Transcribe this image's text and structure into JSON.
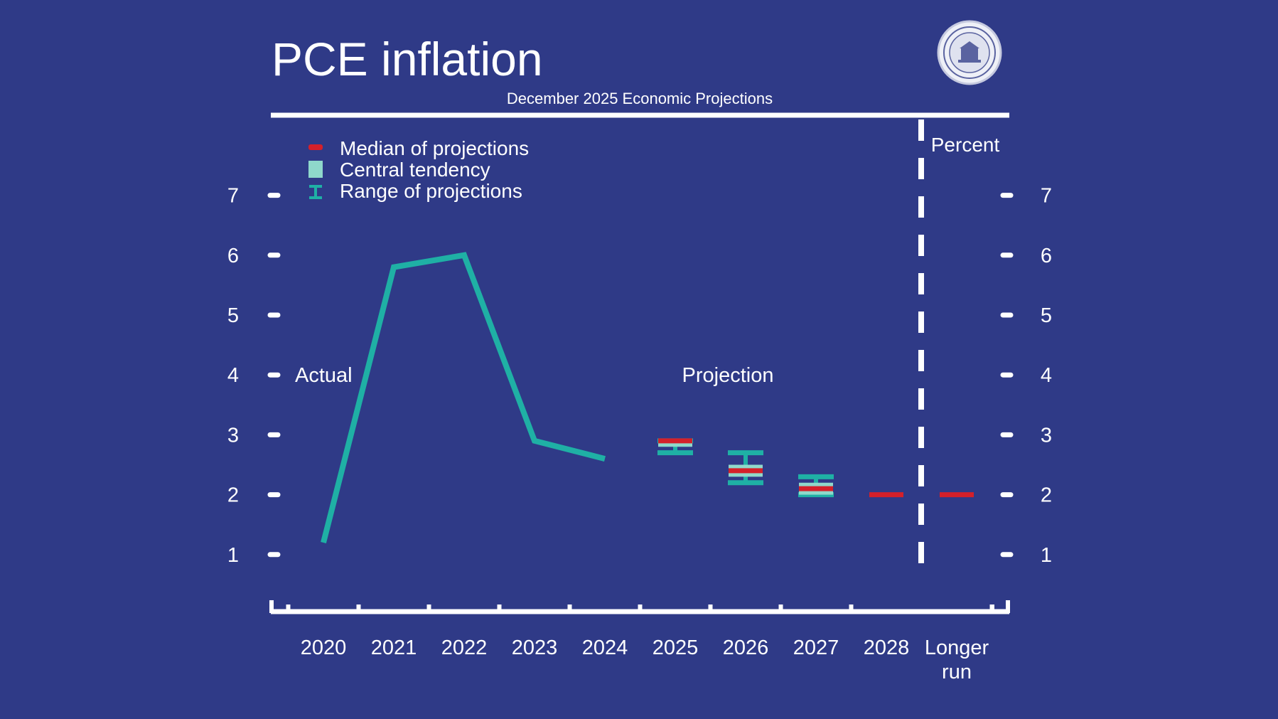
{
  "colors": {
    "background": "#2f3a87",
    "foreground": "#ffffff",
    "actual_line": "#1fb0a5",
    "central_tendency": "#8fd8cb",
    "range": "#1fb0a5",
    "median": "#d4202a"
  },
  "chart_data": {
    "type": "line",
    "title": "PCE inflation",
    "subtitle": "December 2025 Economic Projections",
    "unit_label": "Percent",
    "section_labels": {
      "actual": "Actual",
      "projection": "Projection"
    },
    "legend": [
      {
        "key": "median",
        "label": "Median of projections"
      },
      {
        "key": "central",
        "label": "Central tendency"
      },
      {
        "key": "range",
        "label": "Range of projections"
      }
    ],
    "categories": [
      "2020",
      "2021",
      "2022",
      "2023",
      "2024",
      "2025",
      "2026",
      "2027",
      "2028",
      "Longer run"
    ],
    "category_lines": [
      [
        "2020"
      ],
      [
        "2021"
      ],
      [
        "2022"
      ],
      [
        "2023"
      ],
      [
        "2024"
      ],
      [
        "2025"
      ],
      [
        "2026"
      ],
      [
        "2027"
      ],
      [
        "2028"
      ],
      [
        "Longer",
        "run"
      ]
    ],
    "y_ticks": [
      1,
      2,
      3,
      4,
      5,
      6,
      7
    ],
    "ylim": [
      0,
      7.8
    ],
    "actual": [
      {
        "x": "2020",
        "y": 1.2
      },
      {
        "x": "2021",
        "y": 5.8
      },
      {
        "x": "2022",
        "y": 6.0
      },
      {
        "x": "2023",
        "y": 2.9
      },
      {
        "x": "2024",
        "y": 2.6
      }
    ],
    "projections": [
      {
        "x": "2025",
        "median": 2.9,
        "central": [
          2.8,
          2.9
        ],
        "range": [
          2.7,
          2.9
        ]
      },
      {
        "x": "2026",
        "median": 2.4,
        "central": [
          2.3,
          2.5
        ],
        "range": [
          2.2,
          2.7
        ]
      },
      {
        "x": "2027",
        "median": 2.1,
        "central": [
          2.0,
          2.2
        ],
        "range": [
          2.0,
          2.3
        ]
      },
      {
        "x": "2028",
        "median": 2.0,
        "central": null,
        "range": null
      },
      {
        "x": "Longer run",
        "median": 2.0,
        "central": null,
        "range": null
      }
    ]
  }
}
